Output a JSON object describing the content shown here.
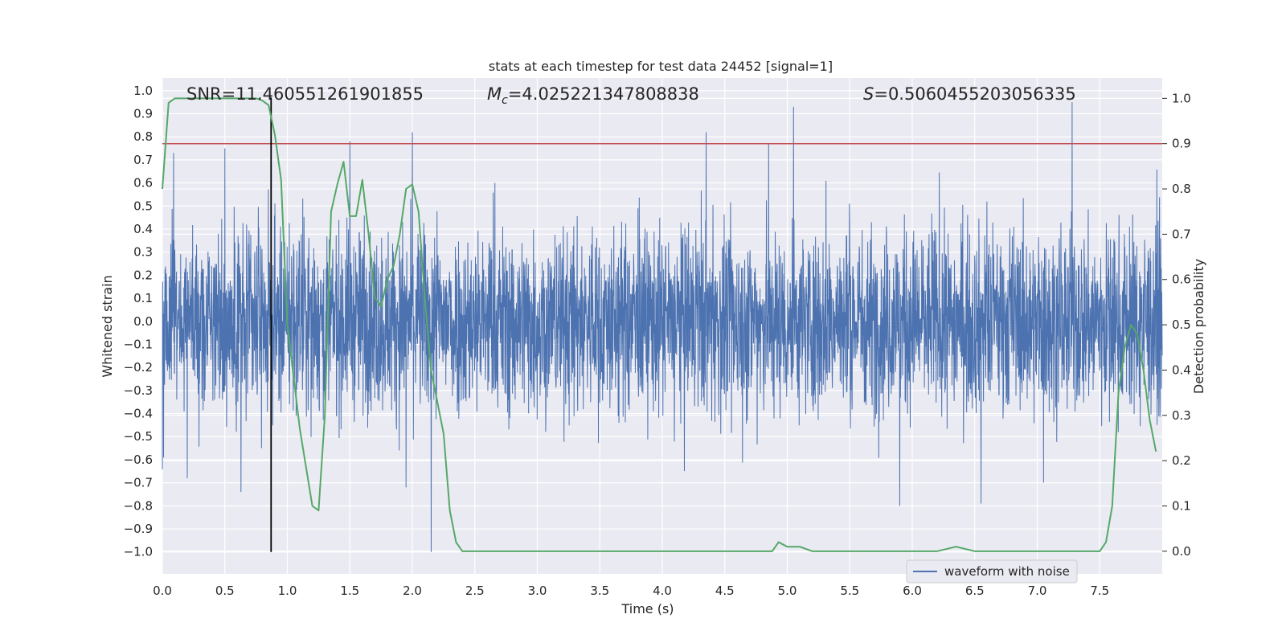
{
  "colors": {
    "background": "#eaeaf2",
    "grid": "#ffffff",
    "waveform": "#4c72b0",
    "probability": "#55a868",
    "threshold": "#c44e52",
    "marker": "#000000"
  },
  "chart_data": {
    "type": "line",
    "title": "stats at each timestep for test data 24452 [signal=1]",
    "xlabel": "Time (s)",
    "ylabel_left": "Whitened strain",
    "ylabel_right": "Detection probability",
    "xlim": [
      0.0,
      8.0
    ],
    "ylim_left": [
      -1.095,
      1.055
    ],
    "ylim_right": [
      -0.05,
      1.045
    ],
    "xticks": [
      "0.0",
      "0.5",
      "1.0",
      "1.5",
      "2.0",
      "2.5",
      "3.0",
      "3.5",
      "4.0",
      "4.5",
      "5.0",
      "5.5",
      "6.0",
      "6.5",
      "7.0",
      "7.5"
    ],
    "yticks_left": [
      "1.0",
      "0.9",
      "0.8",
      "0.7",
      "0.6",
      "0.5",
      "0.4",
      "0.3",
      "0.2",
      "0.1",
      "0.0",
      "−0.1",
      "−0.2",
      "−0.3",
      "−0.4",
      "−0.5",
      "−0.6",
      "−0.7",
      "−0.8",
      "−0.9",
      "−1.0"
    ],
    "yticks_right": [
      "1.0",
      "0.9",
      "0.8",
      "0.7",
      "0.6",
      "0.5",
      "0.4",
      "0.3",
      "0.2",
      "0.1",
      "0.0"
    ],
    "grid": true,
    "legend": {
      "position": "lower-right",
      "entries": [
        "waveform with noise"
      ]
    },
    "annotations": {
      "snr": "SNR=11.460551261901855",
      "mc_symbol": "M",
      "mc_sub": "c",
      "mc_value": "=4.025221347808838",
      "s_symbol": "S",
      "s_value": "=0.5060455203056335"
    },
    "threshold_probability": 0.9,
    "marker_time": 0.87,
    "marker_range": [
      -1.0,
      0.97
    ],
    "waveform": {
      "name": "waveform with noise",
      "samples": 4096,
      "noise_amplitude": 0.36,
      "max_value": 0.95,
      "min_value": -1.0,
      "spikes": [
        {
          "x": 0.09,
          "y": 0.73
        },
        {
          "x": 0.2,
          "y": -0.68
        },
        {
          "x": 0.5,
          "y": 0.75
        },
        {
          "x": 0.63,
          "y": -0.74
        },
        {
          "x": 1.5,
          "y": 0.78
        },
        {
          "x": 1.95,
          "y": -0.72
        },
        {
          "x": 2.0,
          "y": 0.82
        },
        {
          "x": 2.15,
          "y": -1.0
        },
        {
          "x": 4.35,
          "y": 0.82
        },
        {
          "x": 4.85,
          "y": 0.77
        },
        {
          "x": 5.05,
          "y": 0.93
        },
        {
          "x": 5.9,
          "y": -0.8
        },
        {
          "x": 6.55,
          "y": -0.79
        },
        {
          "x": 7.28,
          "y": 0.95
        },
        {
          "x": 7.05,
          "y": -0.7
        }
      ]
    },
    "probability": {
      "name": "detection probability",
      "x": [
        0.0,
        0.05,
        0.1,
        0.2,
        0.3,
        0.4,
        0.5,
        0.6,
        0.7,
        0.75,
        0.8,
        0.85,
        0.9,
        0.95,
        1.0,
        1.1,
        1.2,
        1.25,
        1.3,
        1.35,
        1.4,
        1.45,
        1.5,
        1.55,
        1.6,
        1.65,
        1.7,
        1.75,
        1.8,
        1.85,
        1.9,
        1.95,
        2.0,
        2.05,
        2.1,
        2.15,
        2.2,
        2.25,
        2.3,
        2.35,
        2.4,
        2.45,
        2.5,
        2.6,
        2.8,
        3.0,
        3.2,
        3.4,
        3.6,
        3.8,
        4.0,
        4.2,
        4.4,
        4.6,
        4.8,
        4.88,
        4.93,
        5.0,
        5.05,
        5.1,
        5.2,
        5.3,
        5.5,
        5.8,
        6.0,
        6.2,
        6.35,
        6.5,
        6.8,
        7.0,
        7.2,
        7.4,
        7.5,
        7.55,
        7.6,
        7.65,
        7.7,
        7.75,
        7.8,
        7.85,
        7.9,
        7.95
      ],
      "y": [
        0.8,
        0.99,
        1.0,
        1.0,
        1.0,
        1.0,
        1.0,
        1.0,
        1.0,
        1.0,
        0.995,
        0.985,
        0.92,
        0.82,
        0.5,
        0.27,
        0.1,
        0.09,
        0.3,
        0.75,
        0.81,
        0.86,
        0.74,
        0.74,
        0.82,
        0.7,
        0.56,
        0.54,
        0.6,
        0.63,
        0.7,
        0.8,
        0.81,
        0.75,
        0.56,
        0.4,
        0.33,
        0.26,
        0.09,
        0.02,
        0.0,
        0.0,
        0.0,
        0.0,
        0.0,
        0.0,
        0.0,
        0.0,
        0.0,
        0.0,
        0.0,
        0.0,
        0.0,
        0.0,
        0.0,
        0.0,
        0.02,
        0.01,
        0.01,
        0.01,
        0.0,
        0.0,
        0.0,
        0.0,
        0.0,
        0.0,
        0.01,
        0.0,
        0.0,
        0.0,
        0.0,
        0.0,
        0.0,
        0.02,
        0.1,
        0.35,
        0.45,
        0.5,
        0.48,
        0.4,
        0.29,
        0.22
      ]
    }
  }
}
